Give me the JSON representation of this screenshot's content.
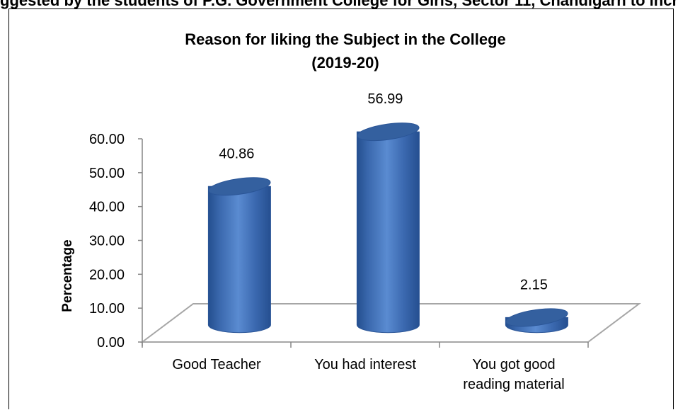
{
  "page": {
    "clipped_heading": "ggested by the students of P.G. Government College for Girls, Sector 11, Chandigarh to increase their interest in the subject"
  },
  "chart_data": {
    "type": "bar",
    "title_lines": [
      "Reason for liking the Subject in the College",
      "(2019-20)"
    ],
    "ylabel": "Percentage",
    "xlabel": "",
    "ylim": [
      0,
      60
    ],
    "yticks": [
      "0.00",
      "10.00",
      "20.00",
      "30.00",
      "40.00",
      "50.00",
      "60.00"
    ],
    "categories": [
      [
        "Good Teacher"
      ],
      [
        "You had interest"
      ],
      [
        "You got good",
        "reading material"
      ]
    ],
    "values": [
      40.86,
      56.99,
      2.15
    ],
    "data_labels": [
      "40.86",
      "56.99",
      "2.15"
    ],
    "bar_color": "#3f6fb8",
    "bar_edge_color": "#2a5597",
    "bar_top_color": "#34609f",
    "floor_line_color": "#a6a6a6",
    "grid": false,
    "legend": "none",
    "style": "3d-cylinder"
  }
}
